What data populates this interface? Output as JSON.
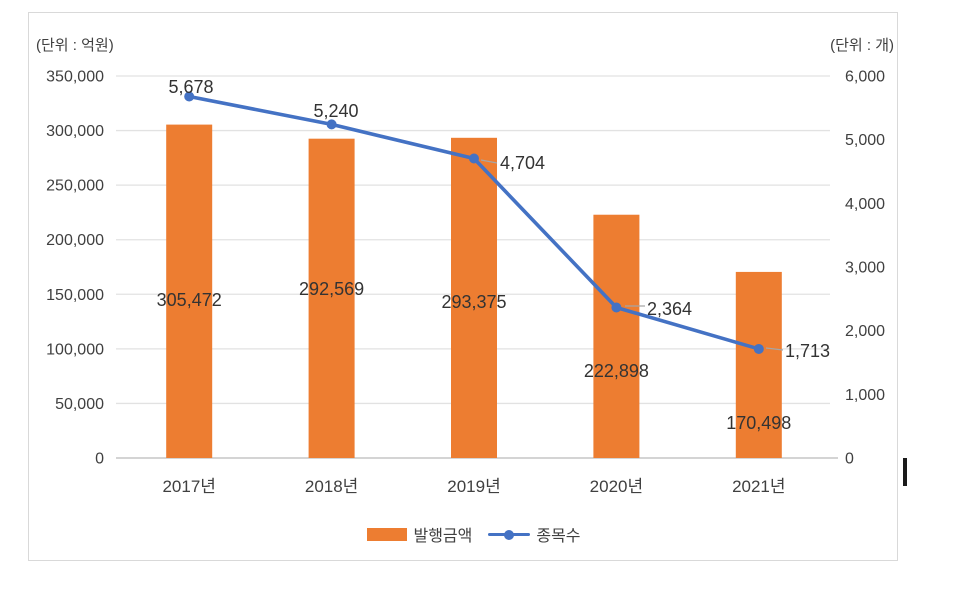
{
  "chart_data": {
    "type": "bar+line",
    "categories": [
      "2017년",
      "2018년",
      "2019년",
      "2020년",
      "2021년"
    ],
    "series": [
      {
        "name": "발행금액",
        "type": "bar",
        "axis": "left",
        "color": "#ED7D31",
        "values": [
          305472,
          292569,
          293375,
          222898,
          170498
        ],
        "value_labels": [
          "305,472",
          "292,569",
          "293,375",
          "222,898",
          "170,498"
        ]
      },
      {
        "name": "종목수",
        "type": "line",
        "axis": "right",
        "color": "#4472C4",
        "values": [
          5678,
          5240,
          4704,
          2364,
          1713
        ],
        "value_labels": [
          "5,678",
          "5,240",
          "4,704",
          "2,364",
          "1,713"
        ]
      }
    ],
    "left_axis": {
      "title": "(단위 : 억원)",
      "min": 0,
      "max": 350000,
      "step": 50000,
      "tick_labels": [
        "350,000",
        "300,000",
        "250,000",
        "200,000",
        "150,000",
        "100,000",
        "50,000",
        "0"
      ]
    },
    "right_axis": {
      "title": "(단위 : 개)",
      "min": 0,
      "max": 6000,
      "step": 1000,
      "tick_labels": [
        "6,000",
        "5,000",
        "4,000",
        "3,000",
        "2,000",
        "1,000",
        "0"
      ]
    },
    "grid": true,
    "legend_position": "bottom-center",
    "colors": {
      "grid": "#E2E2E2",
      "axis_line": "#C6C6C6",
      "tick_text": "#404040",
      "label_text": "#333333",
      "leader_line": "#A6A6A6",
      "frame_border": "#D9D9D9"
    }
  }
}
